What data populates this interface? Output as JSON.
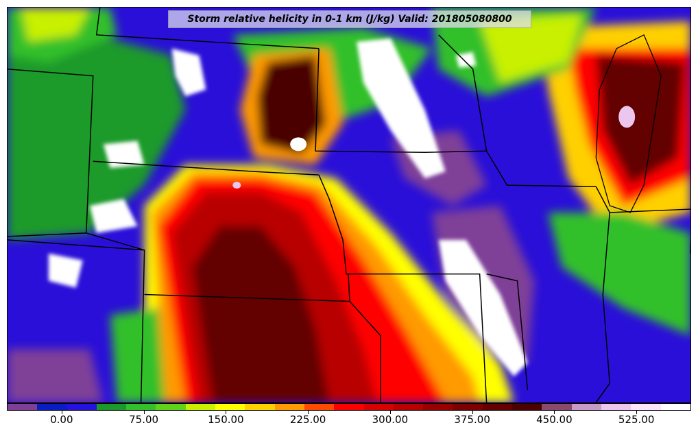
{
  "title": "Storm relative helicity in 0-1 km (J/kg) Valid: 201805080800",
  "colorbar": {
    "min": -50,
    "max": 575,
    "tick_labels": [
      "0.00",
      "75.00",
      "150.00",
      "225.00",
      "300.00",
      "375.00",
      "450.00",
      "525.00"
    ],
    "tick_values": [
      0,
      75,
      150,
      225,
      300,
      375,
      450,
      525
    ],
    "colors": [
      "#7f3f98",
      "#0a1cc4",
      "#2612e0",
      "#1a9a2a",
      "#33c02a",
      "#60d21a",
      "#c8f000",
      "#ffff00",
      "#ffd000",
      "#ff9a00",
      "#ff4a00",
      "#ff0000",
      "#d80000",
      "#b80000",
      "#980000",
      "#7d0000",
      "#640000",
      "#4c0000",
      "#8a4a6e",
      "#c89ac8",
      "#ecc6ec",
      "#fde4fd",
      "#ffffff"
    ]
  },
  "map": {
    "projection": "Lambert conformal (central US)",
    "background_color": "#2a0fd8",
    "boundary_color": "#000000",
    "low_region_color": "#2a0fd8",
    "high_region_color": "#7d0000",
    "missing_color": "#ffffff"
  },
  "chart_data": {
    "type": "heatmap",
    "title": "Storm relative helicity in 0-1 km (J/kg) Valid: 201805080800",
    "variable": "Storm relative helicity 0-1 km",
    "units": "J/kg",
    "valid_time": "201805080800",
    "color_scale_range": [
      -50,
      575
    ],
    "color_scale_ticks": [
      0,
      75,
      150,
      225,
      300,
      375,
      450,
      525
    ]
  }
}
